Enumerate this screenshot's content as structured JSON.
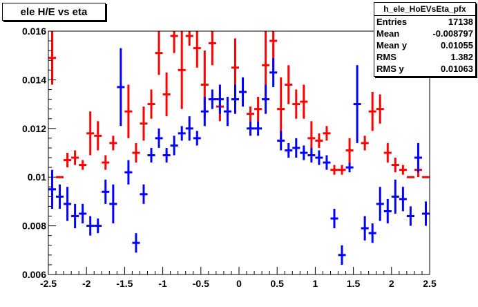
{
  "title": "ele H/E vs eta",
  "stats": {
    "name": "h_ele_HoEVsEta_pfx",
    "rows": [
      {
        "label": "Entries",
        "value": "17138"
      },
      {
        "label": "Mean",
        "value": "-0.008797"
      },
      {
        "label": "Mean y",
        "value": "0.01055"
      },
      {
        "label": "RMS",
        "value": "1.382"
      },
      {
        "label": "RMS y",
        "value": "0.01063"
      }
    ]
  },
  "chart_data": {
    "type": "scatter",
    "xlim": [
      -2.5,
      2.5
    ],
    "ylim": [
      0.006,
      0.016
    ],
    "xticks": [
      -2.5,
      -2,
      -1.5,
      -1,
      -0.5,
      0,
      0.5,
      1,
      1.5,
      2,
      2.5
    ],
    "xtick_labels": [
      "-2.5",
      "-2",
      "-1.5",
      "-1",
      "-0.5",
      "0",
      "0.5",
      "1",
      "1.5",
      "2",
      "2.5"
    ],
    "yticks": [
      0.006,
      0.008,
      0.01,
      0.012,
      0.014,
      0.016
    ],
    "ytick_labels": [
      "0.006",
      "0.008",
      "0.01",
      "0.012",
      "0.014",
      "0.016"
    ],
    "bin_width": 0.1,
    "series": [
      {
        "color": "#ff0000",
        "points": [
          {
            "x": -2.45,
            "y": 0.0149,
            "err": 0.0011
          },
          {
            "x": -2.35,
            "y": 0.01,
            "err": 0.0
          },
          {
            "x": -2.25,
            "y": 0.0107,
            "err": 0.0003
          },
          {
            "x": -2.15,
            "y": 0.0108,
            "err": 0.0003
          },
          {
            "x": -2.05,
            "y": 0.0105,
            "err": 0.0002
          },
          {
            "x": -1.95,
            "y": 0.0118,
            "err": 0.0009
          },
          {
            "x": -1.85,
            "y": 0.0117,
            "err": 0.0006
          },
          {
            "x": -1.75,
            "y": 0.0106,
            "err": 0.0003
          },
          {
            "x": -1.65,
            "y": 0.0114,
            "err": 0.0003
          },
          {
            "x": -1.45,
            "y": 0.0127,
            "err": 0.0011
          },
          {
            "x": -1.35,
            "y": 0.011,
            "err": 0.0004
          },
          {
            "x": -1.25,
            "y": 0.0122,
            "err": 0.0007
          },
          {
            "x": -1.15,
            "y": 0.013,
            "err": 0.0006
          },
          {
            "x": -1.05,
            "y": 0.0151,
            "err": 0.0009
          },
          {
            "x": -0.95,
            "y": 0.0134,
            "err": 0.0009
          },
          {
            "x": -0.85,
            "y": 0.0158,
            "err": 0.0007
          },
          {
            "x": -0.75,
            "y": 0.0144,
            "err": 0.0016
          },
          {
            "x": -0.65,
            "y": 0.0158,
            "err": 0.0004
          },
          {
            "x": -0.55,
            "y": 0.0153,
            "err": 0.0008
          },
          {
            "x": -0.45,
            "y": 0.0138,
            "err": 0.0014
          },
          {
            "x": -0.35,
            "y": 0.0155,
            "err": 0.0009
          },
          {
            "x": -0.25,
            "y": 0.0129,
            "err": 0.0006
          },
          {
            "x": -0.05,
            "y": 0.0145,
            "err": 0.0012
          },
          {
            "x": 0.15,
            "y": 0.0126,
            "err": 0.0003
          },
          {
            "x": 0.25,
            "y": 0.0128,
            "err": 0.0005
          },
          {
            "x": 0.35,
            "y": 0.0146,
            "err": 0.0014
          },
          {
            "x": 0.45,
            "y": 0.0156,
            "err": 0.0012
          },
          {
            "x": 0.55,
            "y": 0.0128,
            "err": 0.0013
          },
          {
            "x": 0.65,
            "y": 0.0138,
            "err": 0.0008
          },
          {
            "x": 0.75,
            "y": 0.013,
            "err": 0.0006
          },
          {
            "x": 0.85,
            "y": 0.0131,
            "err": 0.0007
          },
          {
            "x": 0.95,
            "y": 0.0116,
            "err": 0.0007
          },
          {
            "x": 1.05,
            "y": 0.0115,
            "err": 0.0003
          },
          {
            "x": 1.15,
            "y": 0.0118,
            "err": 0.0003
          },
          {
            "x": 1.25,
            "y": 0.0103,
            "err": 0.0002
          },
          {
            "x": 1.35,
            "y": 0.0103,
            "err": 0.0002
          },
          {
            "x": 1.45,
            "y": 0.0111,
            "err": 0.0005
          },
          {
            "x": 1.65,
            "y": 0.0114,
            "err": 0.0003
          },
          {
            "x": 1.75,
            "y": 0.0127,
            "err": 0.0008
          },
          {
            "x": 1.85,
            "y": 0.0128,
            "err": 0.0006
          },
          {
            "x": 1.95,
            "y": 0.011,
            "err": 0.0004
          },
          {
            "x": 2.05,
            "y": 0.0105,
            "err": 0.0003
          },
          {
            "x": 2.15,
            "y": 0.0103,
            "err": 0.0002
          },
          {
            "x": 2.25,
            "y": 0.01,
            "err": 0.0
          },
          {
            "x": 2.35,
            "y": 0.0103,
            "err": 0.0003
          },
          {
            "x": 2.45,
            "y": 0.01,
            "err": 0.0
          }
        ]
      },
      {
        "color": "#0000ff",
        "points": [
          {
            "x": -2.45,
            "y": 0.0095,
            "err": 0.0008
          },
          {
            "x": -2.35,
            "y": 0.0092,
            "err": 0.0005
          },
          {
            "x": -2.25,
            "y": 0.0089,
            "err": 0.0007
          },
          {
            "x": -2.15,
            "y": 0.0084,
            "err": 0.0005
          },
          {
            "x": -2.05,
            "y": 0.0085,
            "err": 0.0004
          },
          {
            "x": -1.95,
            "y": 0.008,
            "err": 0.0004
          },
          {
            "x": -1.85,
            "y": 0.008,
            "err": 0.0003
          },
          {
            "x": -1.75,
            "y": 0.0094,
            "err": 0.0005
          },
          {
            "x": -1.65,
            "y": 0.0089,
            "err": 0.0008
          },
          {
            "x": -1.55,
            "y": 0.0137,
            "err": 0.0016
          },
          {
            "x": -1.45,
            "y": 0.0102,
            "err": 0.0005
          },
          {
            "x": -1.35,
            "y": 0.0073,
            "err": 0.0004
          },
          {
            "x": -1.25,
            "y": 0.0093,
            "err": 0.0004
          },
          {
            "x": -1.15,
            "y": 0.0109,
            "err": 0.0003
          },
          {
            "x": -1.05,
            "y": 0.0116,
            "err": 0.0004
          },
          {
            "x": -0.95,
            "y": 0.0109,
            "err": 0.0003
          },
          {
            "x": -0.85,
            "y": 0.0113,
            "err": 0.0004
          },
          {
            "x": -0.75,
            "y": 0.0118,
            "err": 0.0003
          },
          {
            "x": -0.65,
            "y": 0.012,
            "err": 0.0005
          },
          {
            "x": -0.55,
            "y": 0.0116,
            "err": 0.0003
          },
          {
            "x": -0.45,
            "y": 0.0127,
            "err": 0.0006
          },
          {
            "x": -0.35,
            "y": 0.0132,
            "err": 0.0004
          },
          {
            "x": -0.25,
            "y": 0.0132,
            "err": 0.0006
          },
          {
            "x": -0.15,
            "y": 0.0127,
            "err": 0.0006
          },
          {
            "x": -0.05,
            "y": 0.0132,
            "err": 0.0006
          },
          {
            "x": 0.05,
            "y": 0.0135,
            "err": 0.0006
          },
          {
            "x": 0.15,
            "y": 0.012,
            "err": 0.0003
          },
          {
            "x": 0.25,
            "y": 0.012,
            "err": 0.0003
          },
          {
            "x": 0.35,
            "y": 0.0132,
            "err": 0.0006
          },
          {
            "x": 0.45,
            "y": 0.0143,
            "err": 0.0006
          },
          {
            "x": 0.55,
            "y": 0.0115,
            "err": 0.0004
          },
          {
            "x": 0.65,
            "y": 0.0111,
            "err": 0.0003
          },
          {
            "x": 0.75,
            "y": 0.0112,
            "err": 0.0004
          },
          {
            "x": 0.85,
            "y": 0.011,
            "err": 0.0003
          },
          {
            "x": 0.95,
            "y": 0.0109,
            "err": 0.0003
          },
          {
            "x": 1.05,
            "y": 0.0108,
            "err": 0.0003
          },
          {
            "x": 1.15,
            "y": 0.0106,
            "err": 0.0003
          },
          {
            "x": 1.25,
            "y": 0.0083,
            "err": 0.0004
          },
          {
            "x": 1.35,
            "y": 0.0068,
            "err": 0.0004
          },
          {
            "x": 1.45,
            "y": 0.0104,
            "err": 0.0002
          },
          {
            "x": 1.55,
            "y": 0.013,
            "err": 0.0016
          },
          {
            "x": 1.65,
            "y": 0.0079,
            "err": 0.0005
          },
          {
            "x": 1.75,
            "y": 0.0077,
            "err": 0.0004
          },
          {
            "x": 1.85,
            "y": 0.0089,
            "err": 0.0007
          },
          {
            "x": 1.95,
            "y": 0.0086,
            "err": 0.0005
          },
          {
            "x": 2.05,
            "y": 0.0092,
            "err": 0.0007
          },
          {
            "x": 2.15,
            "y": 0.0091,
            "err": 0.0005
          },
          {
            "x": 2.25,
            "y": 0.0084,
            "err": 0.0004
          },
          {
            "x": 2.35,
            "y": 0.0108,
            "err": 0.0006
          },
          {
            "x": 2.45,
            "y": 0.0085,
            "err": 0.0005
          }
        ]
      }
    ]
  }
}
